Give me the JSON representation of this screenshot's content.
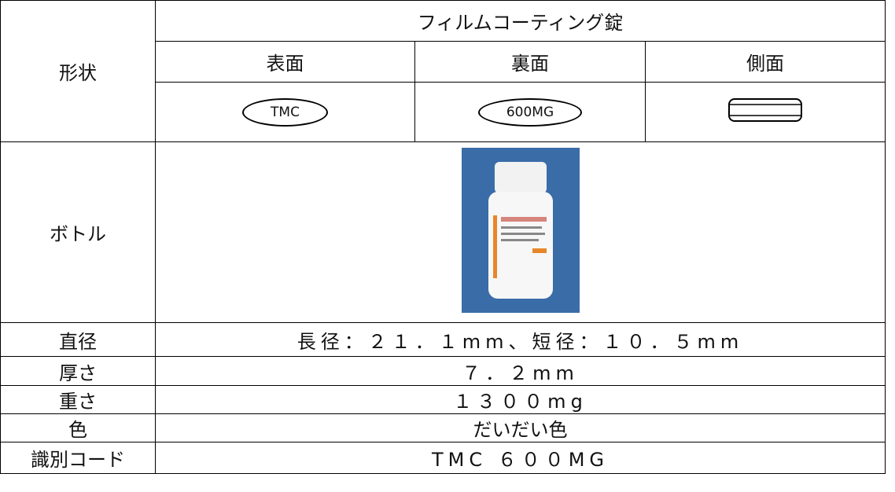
{
  "table": {
    "shape_label": "形状",
    "tablet_type": "フィルムコーティング錠",
    "views": [
      "表面",
      "裏面",
      "側面"
    ],
    "imprints": [
      "TMC",
      "600MG"
    ],
    "bottle_label": "ボトル",
    "rows": [
      [
        "直径",
        "長径：２１．１mm、短径：１０．５mm"
      ],
      [
        "厚さ",
        "７．２mm"
      ],
      [
        "重さ",
        "１３００mg"
      ],
      [
        "色",
        "だいだい色"
      ],
      [
        "識別コード",
        "TMC ６００MG"
      ]
    ]
  }
}
